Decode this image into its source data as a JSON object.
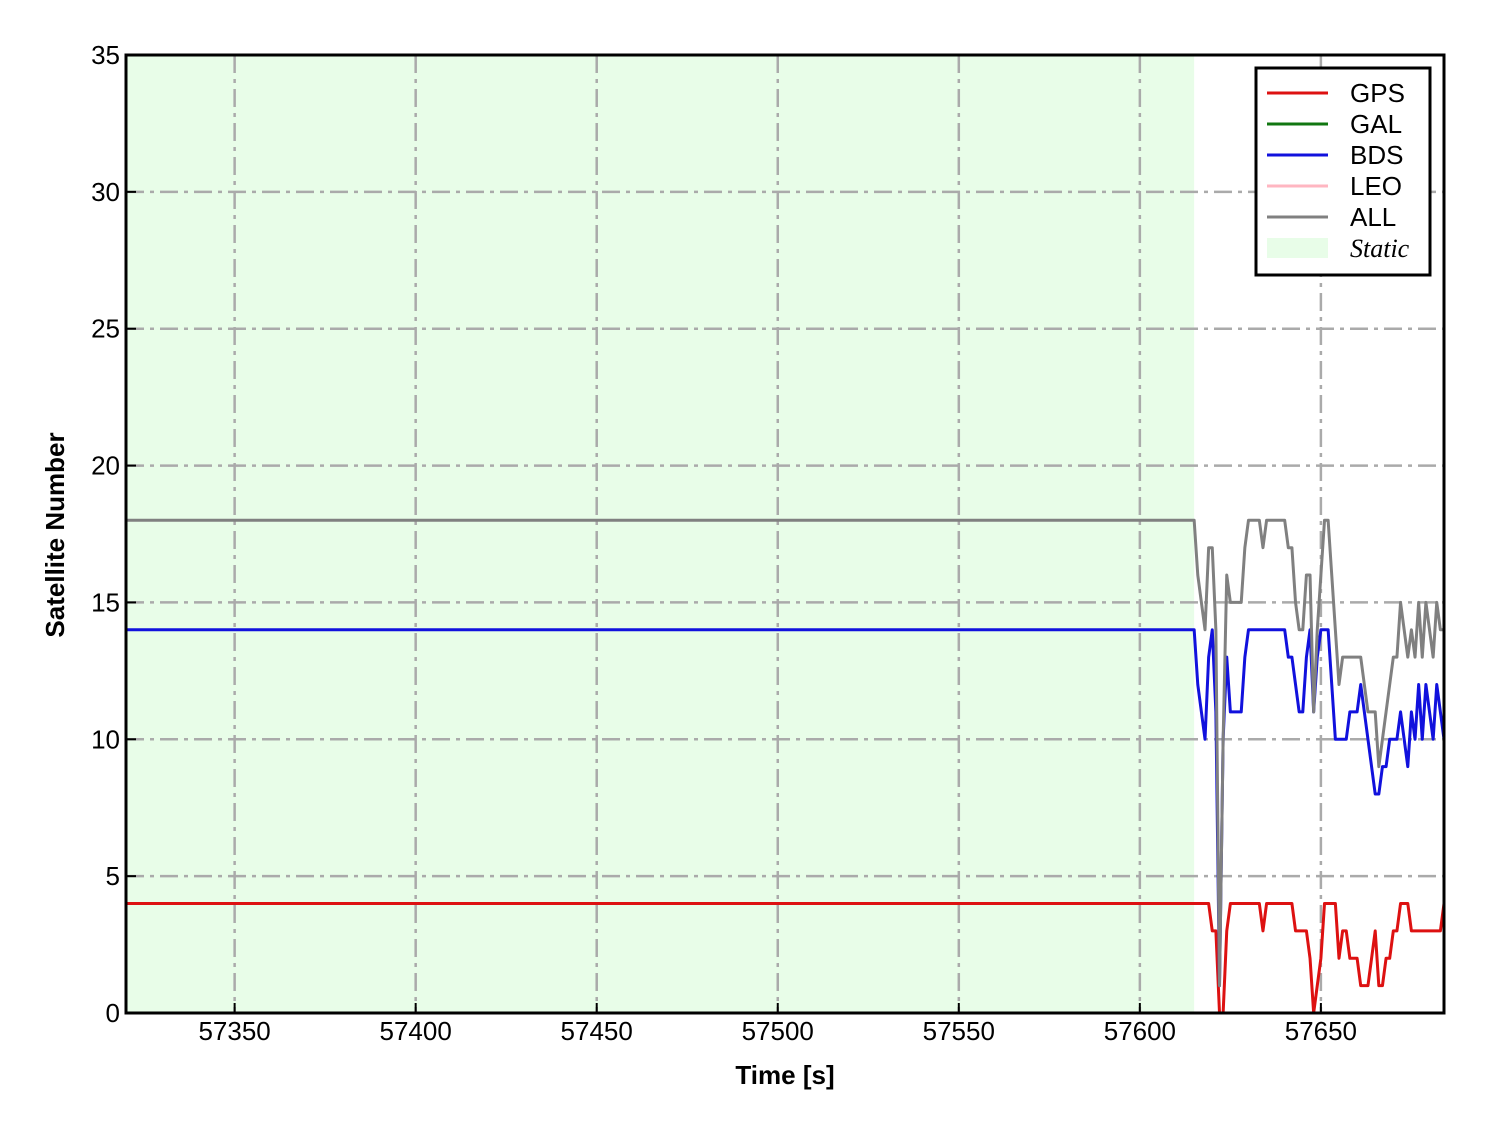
{
  "chart_data": {
    "type": "line",
    "xlabel": "Time [s]",
    "ylabel": "Satellite Number",
    "xlim": [
      57320,
      57684
    ],
    "ylim": [
      0,
      35
    ],
    "xticks": [
      57350,
      57400,
      57450,
      57500,
      57550,
      57600,
      57650
    ],
    "yticks": [
      0,
      5,
      10,
      15,
      20,
      25,
      30,
      35
    ],
    "grid": true,
    "legend": "upper right",
    "spans": [
      {
        "xmin": 57320,
        "xmax": 57615,
        "label": "Static",
        "color": "#e8fde8"
      }
    ],
    "x": [
      57320,
      57615,
      57616,
      57617,
      57618,
      57619,
      57620,
      57621,
      57622,
      57623,
      57624,
      57625,
      57626,
      57627,
      57628,
      57629,
      57630,
      57631,
      57632,
      57633,
      57634,
      57635,
      57636,
      57637,
      57638,
      57639,
      57640,
      57641,
      57642,
      57643,
      57644,
      57645,
      57646,
      57647,
      57648,
      57649,
      57650,
      57651,
      57652,
      57653,
      57654,
      57655,
      57656,
      57657,
      57658,
      57659,
      57660,
      57661,
      57662,
      57663,
      57664,
      57665,
      57666,
      57667,
      57668,
      57669,
      57670,
      57671,
      57672,
      57673,
      57674,
      57675,
      57676,
      57677,
      57678,
      57679,
      57680,
      57681,
      57682,
      57683,
      57684
    ],
    "series": [
      {
        "name": "GPS",
        "color": "#dd1111",
        "values": [
          4,
          4,
          4,
          4,
          4,
          4,
          3,
          3,
          0,
          0,
          3,
          4,
          4,
          4,
          4,
          4,
          4,
          4,
          4,
          4,
          3,
          4,
          4,
          4,
          4,
          4,
          4,
          4,
          4,
          3,
          3,
          3,
          3,
          2,
          0,
          1,
          2,
          4,
          4,
          4,
          4,
          2,
          3,
          3,
          2,
          2,
          2,
          1,
          1,
          1,
          2,
          3,
          1,
          1,
          2,
          2,
          3,
          3,
          4,
          4,
          4,
          3,
          3,
          3,
          3,
          3,
          3,
          3,
          3,
          3,
          4
        ]
      },
      {
        "name": "GAL",
        "color": "#117711",
        "values": [
          0,
          0,
          0,
          0,
          0,
          0,
          0,
          0,
          0,
          0,
          0,
          0,
          0,
          0,
          0,
          0,
          0,
          0,
          0,
          0,
          0,
          0,
          0,
          0,
          0,
          0,
          0,
          0,
          0,
          0,
          0,
          0,
          0,
          0,
          0,
          0,
          0,
          0,
          0,
          0,
          0,
          0,
          0,
          0,
          0,
          0,
          0,
          0,
          0,
          0,
          0,
          0,
          0,
          0,
          0,
          0,
          0,
          0,
          0,
          0,
          0,
          0,
          0,
          0,
          0,
          0,
          0,
          0,
          0,
          0,
          0
        ]
      },
      {
        "name": "BDS",
        "color": "#1111dd",
        "values": [
          14,
          14,
          12,
          11,
          10,
          13,
          14,
          11,
          1,
          10,
          13,
          11,
          11,
          11,
          11,
          13,
          14,
          14,
          14,
          14,
          14,
          14,
          14,
          14,
          14,
          14,
          14,
          13,
          13,
          12,
          11,
          11,
          13,
          14,
          11,
          13,
          14,
          14,
          14,
          12,
          10,
          10,
          10,
          10,
          11,
          11,
          11,
          12,
          11,
          10,
          9,
          8,
          8,
          9,
          9,
          10,
          10,
          10,
          11,
          10,
          9,
          11,
          10,
          12,
          10,
          12,
          11,
          10,
          12,
          11,
          10
        ]
      },
      {
        "name": "LEO",
        "color": "#ffb6c1",
        "values": [
          0,
          0,
          0,
          0,
          0,
          0,
          0,
          0,
          0,
          0,
          0,
          0,
          0,
          0,
          0,
          0,
          0,
          0,
          0,
          0,
          0,
          0,
          0,
          0,
          0,
          0,
          0,
          0,
          0,
          0,
          0,
          0,
          0,
          0,
          0,
          0,
          0,
          0,
          0,
          0,
          0,
          0,
          0,
          0,
          0,
          0,
          0,
          0,
          0,
          0,
          0,
          0,
          0,
          0,
          0,
          0,
          0,
          0,
          0,
          0,
          0,
          0,
          0,
          0,
          0,
          0,
          0,
          0,
          0,
          0,
          0
        ]
      },
      {
        "name": "ALL",
        "color": "#808080",
        "values": [
          18,
          18,
          16,
          15,
          14,
          17,
          17,
          14,
          1,
          10,
          16,
          15,
          15,
          15,
          15,
          17,
          18,
          18,
          18,
          18,
          17,
          18,
          18,
          18,
          18,
          18,
          18,
          17,
          17,
          15,
          14,
          14,
          16,
          16,
          11,
          14,
          16,
          18,
          18,
          16,
          14,
          12,
          13,
          13,
          13,
          13,
          13,
          13,
          12,
          11,
          11,
          11,
          9,
          10,
          11,
          12,
          13,
          13,
          15,
          14,
          13,
          14,
          13,
          15,
          13,
          15,
          14,
          13,
          15,
          14,
          14
        ]
      }
    ]
  }
}
